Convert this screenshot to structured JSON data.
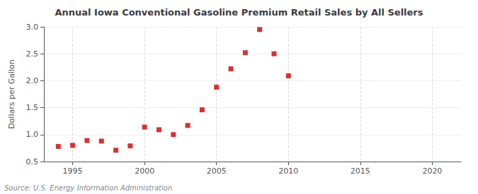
{
  "chart_data": {
    "type": "scatter",
    "title": "Annual Iowa Conventional Gasoline Premium Retail Sales by All Sellers",
    "ylabel": "Dollars per Gallon",
    "source": "Source: U.S. Energy Information Administration",
    "x": [
      1994,
      1995,
      1996,
      1997,
      1998,
      1999,
      2000,
      2001,
      2002,
      2003,
      2004,
      2005,
      2006,
      2007,
      2008,
      2009,
      2010
    ],
    "values": [
      0.78,
      0.8,
      0.89,
      0.88,
      0.71,
      0.79,
      1.14,
      1.09,
      1.0,
      1.17,
      1.46,
      1.88,
      2.22,
      2.52,
      2.95,
      2.5,
      2.09
    ],
    "color": "#cc0000",
    "marker": "square",
    "xlim": [
      1993,
      2022
    ],
    "xticks": [
      1995,
      2000,
      2005,
      2010,
      2015,
      2020
    ],
    "ylim": [
      0.5,
      3.0
    ],
    "yticks": [
      0.5,
      {
        "value": 1.0,
        "label": "1.0"
      },
      1.5,
      {
        "value": 2.0,
        "label": "2.0"
      },
      2.5,
      {
        "value": 3.0,
        "label": "3.0"
      }
    ],
    "grid": true
  }
}
